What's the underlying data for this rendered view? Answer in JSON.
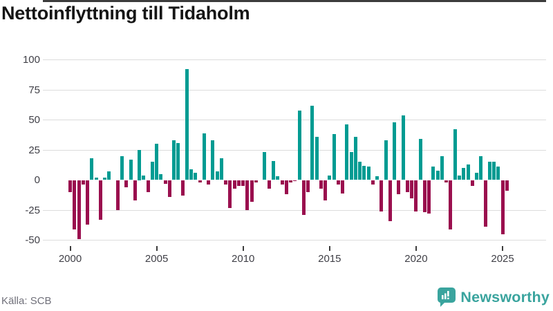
{
  "header": {
    "title": "Nettoinflyttning till Tidaholm"
  },
  "footer": {
    "source": "Källa: SCB",
    "brand": "Newsworthy"
  },
  "colors": {
    "positive": "#009B92",
    "negative": "#9A0E4E",
    "axis": "#3C3C3C",
    "grid": "#DCDCDC",
    "brand_teal": "#3AA49E",
    "tick_text": "#3F3F46",
    "source_text": "#70707A"
  },
  "chart_data": {
    "type": "bar",
    "title": "Nettoinflyttning till Tidaholm",
    "xlabel": "",
    "ylabel": "",
    "legend": "none",
    "grid": "horizontal",
    "ylim": [
      -57,
      107
    ],
    "y_ticks": [
      100,
      75,
      50,
      25,
      0,
      -25,
      -50
    ],
    "y_tick_labels": [
      "100",
      "75",
      "50",
      "25",
      "0",
      "-25",
      "-50"
    ],
    "x_tick_years": [
      2000,
      2005,
      2010,
      2015,
      2020,
      2025
    ],
    "x_tick_labels": [
      "2000",
      "2005",
      "2010",
      "2015",
      "2020",
      "2025"
    ],
    "frequency": "quarterly",
    "series_start": "2000-Q1",
    "series_end": "2025-Q2",
    "values": [
      -10,
      -41,
      -49,
      -4,
      -37,
      18,
      2,
      -33,
      2,
      7,
      0,
      -25,
      20,
      -6,
      17,
      -17,
      25,
      4,
      -10,
      15,
      30,
      5,
      -3,
      -14,
      33,
      31,
      -13,
      92,
      9,
      6,
      -2,
      39,
      -4,
      33,
      7,
      18,
      -4,
      -23,
      -7,
      -5,
      -5,
      -25,
      -18,
      -2,
      0,
      23,
      -7,
      16,
      3,
      -4,
      -12,
      -2,
      -1,
      58,
      -29,
      -10,
      62,
      36,
      -7,
      -17,
      4,
      38,
      -4,
      -11,
      46,
      23,
      36,
      15,
      12,
      11,
      -4,
      3,
      -26,
      33,
      -34,
      48,
      -12,
      54,
      -10,
      -15,
      -26,
      34,
      -27,
      -28,
      11,
      8,
      20,
      -2,
      -41,
      42,
      4,
      10,
      13,
      -5,
      6,
      20,
      -39,
      15,
      15,
      11,
      -45,
      -9
    ]
  }
}
